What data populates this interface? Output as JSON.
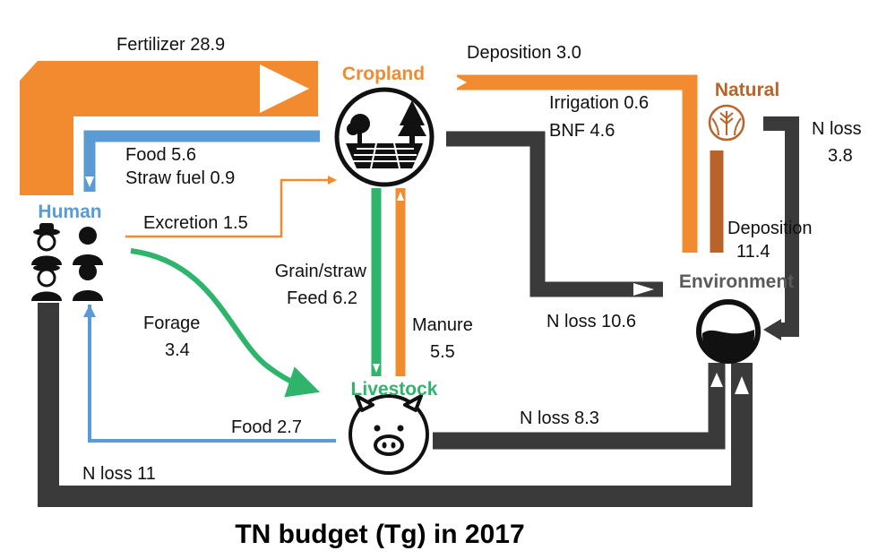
{
  "colors": {
    "fertilizer": "#F28A30",
    "food": "#5B9BD5",
    "feed": "#2EB56B",
    "loss": "#3A3A3A",
    "natural": "#B8642A",
    "cropland_label": "#F28A30",
    "human_label": "#5B9BD5",
    "livestock_label": "#2EB56B",
    "natural_label": "#B8642A",
    "environment_label": "#5A5A5A"
  },
  "nodes": {
    "cropland": "Cropland",
    "natural": "Natural",
    "human": "Human",
    "livestock": "Livestock",
    "environment": "Environment"
  },
  "flows": {
    "fertilizer": "Fertilizer  28.9",
    "deposition_cropland": "Deposition 3.0",
    "irrigation": "Irrigation 0.6",
    "bnf": "BNF 4.6",
    "food_crop": "Food 5.6",
    "straw_fuel": "Straw fuel 0.9",
    "excretion": "Excretion 1.5",
    "grain_straw": "Grain/straw",
    "feed": "Feed 6.2",
    "manure_label": "Manure",
    "manure_value": "5.5",
    "forage_label": "Forage",
    "forage_value": "3.4",
    "food_livestock": "Food 2.7",
    "nloss_cropland": "N loss 10.6",
    "nloss_livestock": "N loss 8.3",
    "nloss_human": "N loss 11",
    "nloss_natural_label": "N loss",
    "nloss_natural_value": "3.8",
    "deposition_natural_label": "Deposition",
    "deposition_natural_value": "11.4"
  },
  "title": "TN budget (Tg) in 2017"
}
